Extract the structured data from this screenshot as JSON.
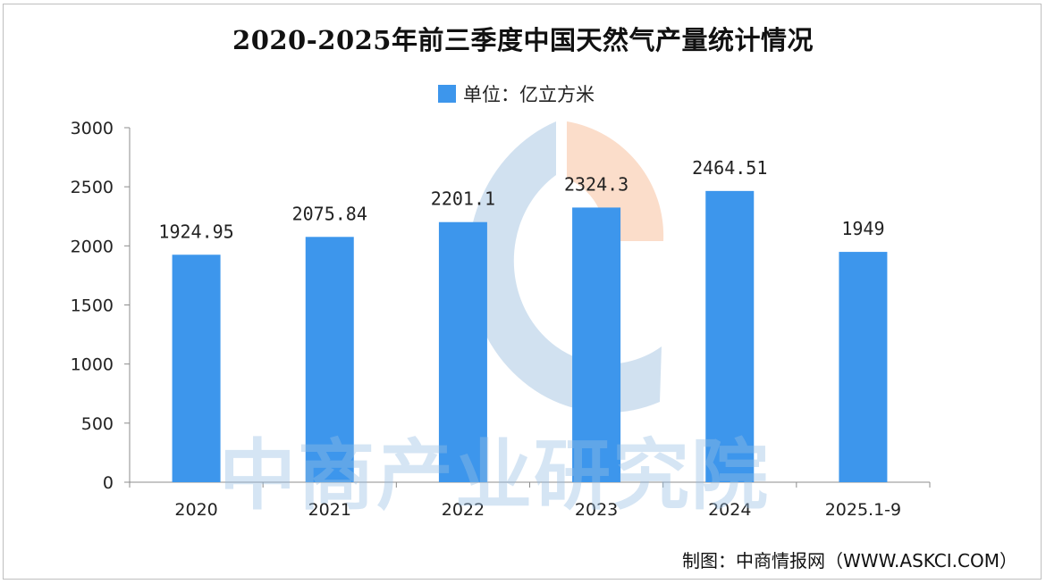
{
  "chart_data": {
    "type": "bar",
    "title": "2020-2025年前三季度中国天然气产量统计情况",
    "legend": "单位：亿立方米",
    "legend_position": "top",
    "categories": [
      "2020",
      "2021",
      "2022",
      "2023",
      "2024",
      "2025.1-9"
    ],
    "values": [
      1924.95,
      2075.84,
      2201.1,
      2324.3,
      2464.51,
      1949
    ],
    "data_labels": [
      "1924.95",
      "2075.84",
      "2201.1",
      "2324.3",
      "2464.51",
      "1949"
    ],
    "ylim": [
      0,
      3000
    ],
    "yticks": [
      0,
      500,
      1000,
      1500,
      2000,
      2500,
      3000
    ],
    "grid": false,
    "bar_color": "#3d96ec"
  },
  "watermark": "中商产业研究院",
  "source": "制图：中商情报网（WWW.ASKCI.COM）",
  "colors": {
    "bar": "#3d96ec",
    "logo_blue": "#c9dced",
    "logo_orange": "#fbd9c4"
  }
}
